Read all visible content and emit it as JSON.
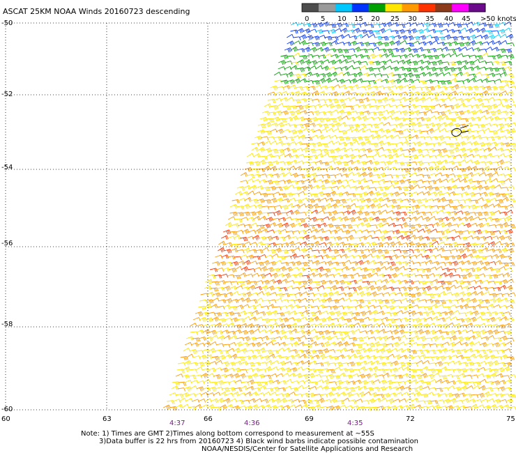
{
  "title": "ASCAT 25KM NOAA Winds 20160723 descending",
  "legend": {
    "labels": [
      "0",
      "5",
      "10",
      "15",
      "20",
      "25",
      "30",
      "35",
      "40",
      "45",
      ">50 knots"
    ],
    "colors": [
      "#4d4d4d",
      "#9a9a9a",
      "#00c8ff",
      "#0033ff",
      "#00a000",
      "#ffe600",
      "#ff9900",
      "#ff3300",
      "#8b3a1a",
      "#ff00ff",
      "#6a0a8a"
    ]
  },
  "map": {
    "lon_range": [
      60,
      75
    ],
    "lat_range": [
      -50,
      -60
    ],
    "lon_labels": [
      "60",
      "63",
      "66",
      "69",
      "72",
      "75"
    ],
    "lat_labels": [
      "-50",
      "-52",
      "-54",
      "-56",
      "-58",
      "-60"
    ],
    "time_labels": [
      "4:37",
      "4:36",
      "4:35"
    ],
    "grid": "dotted"
  },
  "notes": [
    "Note: 1) Times are GMT 2)Times along bottom correspond to measurement at ~55S",
    "3)Data buffer is 22 hrs from 20160723 4) Black wind barbs indicate possible contamination",
    "NOAA/NESDIS/Center for Satellite Applications and Research"
  ]
}
